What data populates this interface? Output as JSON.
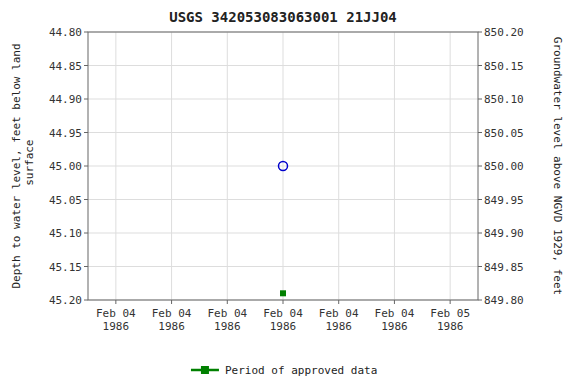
{
  "chart_data": {
    "type": "scatter",
    "title": "USGS 342053083063001 21JJ04",
    "y_label": "Depth to water level, feet below land\n surface",
    "y2_label": "Groundwater level above NGVD 1929, feet",
    "categories": [
      "Feb 04\n1986",
      "Feb 04\n1986",
      "Feb 04\n1986",
      "Feb 04\n1986",
      "Feb 04\n1986",
      "Feb 04\n1986",
      "Feb 05\n1986"
    ],
    "series": [
      {
        "color": "#0000cc",
        "marker": "circle-open",
        "values": [
          null,
          null,
          null,
          45.0,
          null,
          null,
          null
        ]
      },
      {
        "name": "Period of approved data",
        "color": "#008000",
        "marker": "square",
        "values": [
          null,
          null,
          null,
          45.19,
          null,
          null,
          null
        ]
      }
    ],
    "ylim": [
      45.2,
      44.8
    ],
    "yticks": [
      {
        "value": 44.8,
        "label": "44.80"
      },
      {
        "value": 44.85,
        "label": "44.85"
      },
      {
        "value": 44.9,
        "label": "44.90"
      },
      {
        "value": 44.95,
        "label": "44.95"
      },
      {
        "value": 45.0,
        "label": "45.00"
      },
      {
        "value": 45.05,
        "label": "45.05"
      },
      {
        "value": 45.1,
        "label": "45.10"
      },
      {
        "value": 45.15,
        "label": "45.15"
      },
      {
        "value": 45.2,
        "label": "45.20"
      }
    ],
    "y2lim": [
      849.8,
      850.2
    ],
    "y2ticks": [
      {
        "value": 850.2,
        "label": "850.20"
      },
      {
        "value": 850.15,
        "label": "850.15"
      },
      {
        "value": 850.1,
        "label": "850.10"
      },
      {
        "value": 850.05,
        "label": "850.05"
      },
      {
        "value": 850.0,
        "label": "850.00"
      },
      {
        "value": 849.95,
        "label": "849.95"
      },
      {
        "value": 849.9,
        "label": "849.90"
      },
      {
        "value": 849.85,
        "label": "849.85"
      },
      {
        "value": 849.8,
        "label": "849.80"
      }
    ],
    "grid": true,
    "legend": "bottom"
  }
}
